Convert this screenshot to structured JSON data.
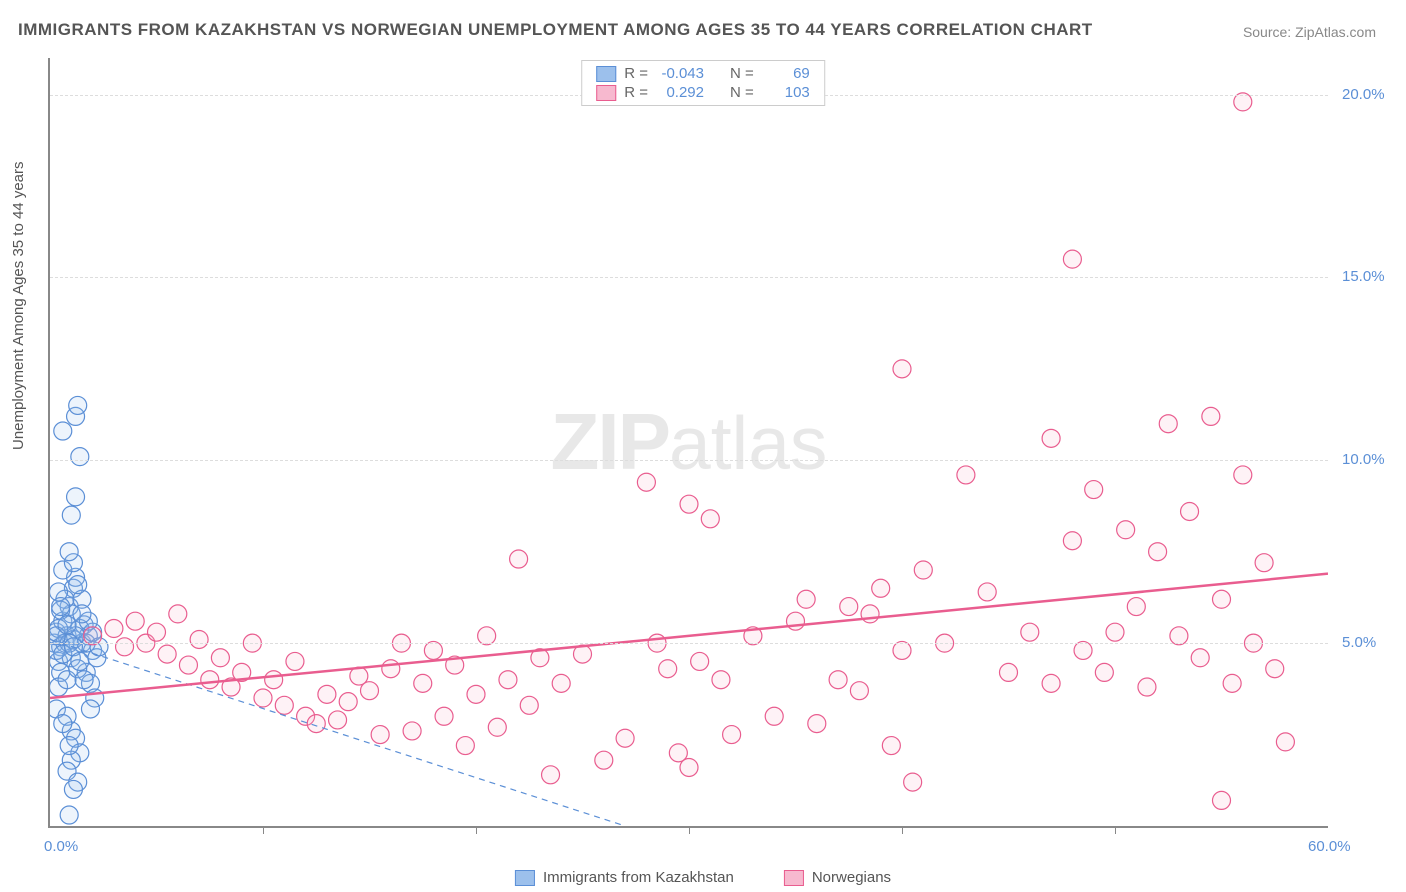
{
  "title": "IMMIGRANTS FROM KAZAKHSTAN VS NORWEGIAN UNEMPLOYMENT AMONG AGES 35 TO 44 YEARS CORRELATION CHART",
  "source": "Source: ZipAtlas.com",
  "ylabel": "Unemployment Among Ages 35 to 44 years",
  "watermark_a": "ZIP",
  "watermark_b": "atlas",
  "chart": {
    "type": "scatter",
    "xlim": [
      0,
      60
    ],
    "ylim": [
      0,
      21
    ],
    "background_color": "#ffffff",
    "grid_color": "#dddddd",
    "axis_color": "#888888",
    "y_ticks": [
      {
        "value": 5.0,
        "label": "5.0%"
      },
      {
        "value": 10.0,
        "label": "10.0%"
      },
      {
        "value": 15.0,
        "label": "15.0%"
      },
      {
        "value": 20.0,
        "label": "20.0%"
      }
    ],
    "x_label_left": {
      "value": 0.0,
      "label": "0.0%"
    },
    "x_label_right": {
      "value": 60.0,
      "label": "60.0%"
    },
    "x_tick_positions": [
      10,
      20,
      30,
      40,
      50
    ],
    "marker_radius": 9,
    "marker_stroke_width": 1.2,
    "marker_fill_opacity": 0.18,
    "series": [
      {
        "key": "kazakhstan",
        "label": "Immigrants from Kazakhstan",
        "color_stroke": "#5b8fd6",
        "color_fill": "#9cc0ec",
        "R": "-0.043",
        "N": "69",
        "trend": {
          "style": "dashed",
          "width": 1.2,
          "x1": 0,
          "y1": 5.1,
          "x2": 27,
          "y2": 0
        },
        "points": [
          [
            0.2,
            5.0
          ],
          [
            0.3,
            5.3
          ],
          [
            0.5,
            4.9
          ],
          [
            0.6,
            5.6
          ],
          [
            0.4,
            4.5
          ],
          [
            0.8,
            5.2
          ],
          [
            0.9,
            6.0
          ],
          [
            1.0,
            5.8
          ],
          [
            1.1,
            6.5
          ],
          [
            1.2,
            6.8
          ],
          [
            0.7,
            6.2
          ],
          [
            0.6,
            7.0
          ],
          [
            0.5,
            4.2
          ],
          [
            0.4,
            3.8
          ],
          [
            0.3,
            3.2
          ],
          [
            0.8,
            3.0
          ],
          [
            1.0,
            2.6
          ],
          [
            1.2,
            2.4
          ],
          [
            1.4,
            2.0
          ],
          [
            1.0,
            1.8
          ],
          [
            0.8,
            1.5
          ],
          [
            1.3,
            1.2
          ],
          [
            1.1,
            1.0
          ],
          [
            0.9,
            0.3
          ],
          [
            1.5,
            5.0
          ],
          [
            1.6,
            5.5
          ],
          [
            1.8,
            5.2
          ],
          [
            2.0,
            4.8
          ],
          [
            2.2,
            4.6
          ],
          [
            1.7,
            4.2
          ],
          [
            1.9,
            3.9
          ],
          [
            2.1,
            3.5
          ],
          [
            1.5,
            6.2
          ],
          [
            1.3,
            6.6
          ],
          [
            1.1,
            7.2
          ],
          [
            0.9,
            7.5
          ],
          [
            1.0,
            8.5
          ],
          [
            1.2,
            9.0
          ],
          [
            1.4,
            10.1
          ],
          [
            1.2,
            11.2
          ],
          [
            1.3,
            11.5
          ],
          [
            0.6,
            10.8
          ],
          [
            0.8,
            4.0
          ],
          [
            0.5,
            5.9
          ],
          [
            0.4,
            5.4
          ],
          [
            0.7,
            5.0
          ],
          [
            1.0,
            4.6
          ],
          [
            1.3,
            4.3
          ],
          [
            1.6,
            4.0
          ],
          [
            1.9,
            3.2
          ],
          [
            0.3,
            4.8
          ],
          [
            0.4,
            6.4
          ],
          [
            0.6,
            2.8
          ],
          [
            0.9,
            2.2
          ],
          [
            1.1,
            5.1
          ],
          [
            1.4,
            5.4
          ],
          [
            1.7,
            5.0
          ],
          [
            2.0,
            5.3
          ],
          [
            2.3,
            4.9
          ],
          [
            1.8,
            5.6
          ],
          [
            1.5,
            5.8
          ],
          [
            1.2,
            5.2
          ],
          [
            0.9,
            5.0
          ],
          [
            0.6,
            4.7
          ],
          [
            0.3,
            5.2
          ],
          [
            0.5,
            6.0
          ],
          [
            0.8,
            5.5
          ],
          [
            1.1,
            4.9
          ],
          [
            1.4,
            4.5
          ]
        ]
      },
      {
        "key": "norwegians",
        "label": "Norwegians",
        "color_stroke": "#e95d8f",
        "color_fill": "#f7b9cf",
        "R": "0.292",
        "N": "103",
        "trend": {
          "style": "solid",
          "width": 2.5,
          "x1": 0,
          "y1": 3.5,
          "x2": 60,
          "y2": 6.9
        },
        "points": [
          [
            2.0,
            5.2
          ],
          [
            3.0,
            5.4
          ],
          [
            3.5,
            4.9
          ],
          [
            4.0,
            5.6
          ],
          [
            4.5,
            5.0
          ],
          [
            5.0,
            5.3
          ],
          [
            5.5,
            4.7
          ],
          [
            6.0,
            5.8
          ],
          [
            6.5,
            4.4
          ],
          [
            7.0,
            5.1
          ],
          [
            7.5,
            4.0
          ],
          [
            8.0,
            4.6
          ],
          [
            8.5,
            3.8
          ],
          [
            9.0,
            4.2
          ],
          [
            9.5,
            5.0
          ],
          [
            10.0,
            3.5
          ],
          [
            10.5,
            4.0
          ],
          [
            11.0,
            3.3
          ],
          [
            11.5,
            4.5
          ],
          [
            12.0,
            3.0
          ],
          [
            12.5,
            2.8
          ],
          [
            13.0,
            3.6
          ],
          [
            13.5,
            2.9
          ],
          [
            14.0,
            3.4
          ],
          [
            14.5,
            4.1
          ],
          [
            15.0,
            3.7
          ],
          [
            15.5,
            2.5
          ],
          [
            16.0,
            4.3
          ],
          [
            16.5,
            5.0
          ],
          [
            17.0,
            2.6
          ],
          [
            17.5,
            3.9
          ],
          [
            18.0,
            4.8
          ],
          [
            18.5,
            3.0
          ],
          [
            19.0,
            4.4
          ],
          [
            19.5,
            2.2
          ],
          [
            20.0,
            3.6
          ],
          [
            20.5,
            5.2
          ],
          [
            21.0,
            2.7
          ],
          [
            21.5,
            4.0
          ],
          [
            22.0,
            7.3
          ],
          [
            22.5,
            3.3
          ],
          [
            23.0,
            4.6
          ],
          [
            23.5,
            1.4
          ],
          [
            24.0,
            3.9
          ],
          [
            25.0,
            4.7
          ],
          [
            26.0,
            1.8
          ],
          [
            27.0,
            2.4
          ],
          [
            28.0,
            9.4
          ],
          [
            28.5,
            5.0
          ],
          [
            29.0,
            4.3
          ],
          [
            29.5,
            2.0
          ],
          [
            30.0,
            8.8
          ],
          [
            30.0,
            1.6
          ],
          [
            30.5,
            4.5
          ],
          [
            31.0,
            8.4
          ],
          [
            31.5,
            4.0
          ],
          [
            32.0,
            2.5
          ],
          [
            33.0,
            5.2
          ],
          [
            34.0,
            3.0
          ],
          [
            35.0,
            5.6
          ],
          [
            35.5,
            6.2
          ],
          [
            36.0,
            2.8
          ],
          [
            40.0,
            12.5
          ],
          [
            37.0,
            4.0
          ],
          [
            37.5,
            6.0
          ],
          [
            38.0,
            3.7
          ],
          [
            38.5,
            5.8
          ],
          [
            39.0,
            6.5
          ],
          [
            39.5,
            2.2
          ],
          [
            40.0,
            4.8
          ],
          [
            40.5,
            1.2
          ],
          [
            41.0,
            7.0
          ],
          [
            42.0,
            5.0
          ],
          [
            43.0,
            9.6
          ],
          [
            44.0,
            6.4
          ],
          [
            45.0,
            4.2
          ],
          [
            46.0,
            5.3
          ],
          [
            47.0,
            3.9
          ],
          [
            47.0,
            10.6
          ],
          [
            48.0,
            7.8
          ],
          [
            48.5,
            4.8
          ],
          [
            49.0,
            9.2
          ],
          [
            49.5,
            4.2
          ],
          [
            50.0,
            5.3
          ],
          [
            50.5,
            8.1
          ],
          [
            51.0,
            6.0
          ],
          [
            51.5,
            3.8
          ],
          [
            48.0,
            15.5
          ],
          [
            52.0,
            7.5
          ],
          [
            52.5,
            11.0
          ],
          [
            53.0,
            5.2
          ],
          [
            53.5,
            8.6
          ],
          [
            54.0,
            4.6
          ],
          [
            54.5,
            11.2
          ],
          [
            55.0,
            6.2
          ],
          [
            55.5,
            3.9
          ],
          [
            56.0,
            9.6
          ],
          [
            56.5,
            5.0
          ],
          [
            57.0,
            7.2
          ],
          [
            56.0,
            19.8
          ],
          [
            55.0,
            0.7
          ],
          [
            57.5,
            4.3
          ],
          [
            58.0,
            2.3
          ]
        ]
      }
    ]
  },
  "legend": {
    "r_label": "R =",
    "n_label": "N ="
  }
}
